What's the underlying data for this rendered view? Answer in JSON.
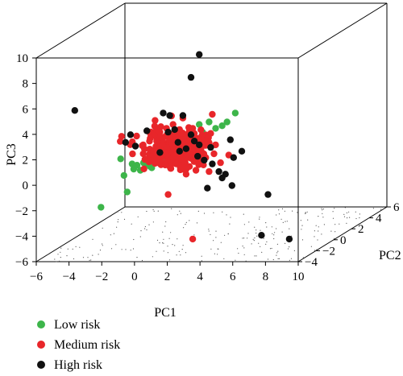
{
  "chart_data": {
    "type": "scatter",
    "dimensions": 3,
    "xlabel": "PC1",
    "ylabel": "PC2",
    "zlabel": "PC3",
    "xlim": [
      -6,
      10
    ],
    "ylim": [
      -4,
      6
    ],
    "zlim": [
      -6,
      10
    ],
    "xticks": [
      "−6",
      "−4",
      "−2",
      "0",
      "2",
      "4",
      "6",
      "8",
      "10"
    ],
    "yticks": [
      "−4",
      "−2",
      "0",
      "2",
      "4",
      "6"
    ],
    "zticks": [
      "−6",
      "−4",
      "−2",
      "0",
      "2",
      "4",
      "6",
      "8",
      "10"
    ],
    "box": true,
    "grid": false,
    "legend_position": "bottom-left",
    "series": [
      {
        "name": "Low risk",
        "color": "#3db54a",
        "points": [
          [
            -3.4,
            0,
            -2.8
          ],
          [
            -2.2,
            0,
            1.0
          ],
          [
            -2.0,
            0,
            -0.3
          ],
          [
            -1.8,
            0,
            -1.6
          ],
          [
            -1.5,
            0,
            0.6
          ],
          [
            -1.4,
            0,
            0.2
          ],
          [
            -1.2,
            0,
            0.5
          ],
          [
            -1.0,
            0,
            0.1
          ],
          [
            -0.8,
            0,
            0.7
          ],
          [
            -0.6,
            0,
            0.6
          ],
          [
            -0.4,
            0,
            0.4
          ],
          [
            -0.2,
            0,
            0.8
          ],
          [
            -0.3,
            0,
            0.3
          ],
          [
            0.0,
            0,
            0.9
          ],
          [
            -0.1,
            0,
            1.0
          ],
          [
            0.2,
            0,
            0.7
          ],
          [
            0.4,
            0,
            0.6
          ],
          [
            0.3,
            0,
            0.9
          ],
          [
            4.8,
            0,
            4.6
          ],
          [
            4.3,
            0,
            3.9
          ],
          [
            3.2,
            0,
            3.9
          ],
          [
            3.6,
            0,
            3.4
          ],
          [
            4.0,
            0,
            3.6
          ],
          [
            2.8,
            0,
            3.1
          ],
          [
            3.1,
            0,
            2.8
          ],
          [
            1.8,
            0,
            2.3
          ],
          [
            2.6,
            0,
            3.7
          ],
          [
            0.1,
            0,
            1.3
          ]
        ]
      },
      {
        "name": "Medium risk",
        "color": "#e8262a",
        "points": [
          [
            0.7,
            0,
            -1.8
          ],
          [
            2.2,
            0,
            -5.3
          ],
          [
            3.4,
            0,
            4.5
          ],
          [
            2.3,
            0,
            3.0
          ],
          [
            2.8,
            0,
            0.8
          ],
          [
            3.0,
            0,
            1.1
          ],
          [
            3.6,
            0,
            2.1
          ],
          [
            3.5,
            0,
            1.4
          ],
          [
            2.4,
            0,
            0.1
          ],
          [
            1.8,
            0,
            -0.2
          ],
          [
            1.5,
            0,
            1.0
          ],
          [
            2.6,
            0,
            1.7
          ],
          [
            1.1,
            0,
            2.4
          ],
          [
            0.0,
            0,
            2.4
          ],
          [
            -0.4,
            0,
            2.6
          ],
          [
            -0.2,
            0,
            1.6
          ],
          [
            0.2,
            0,
            3.1
          ],
          [
            0.6,
            0,
            3.4
          ],
          [
            1.0,
            0,
            3.7
          ],
          [
            1.4,
            0,
            3.3
          ],
          [
            1.8,
            0,
            2.9
          ],
          [
            1.2,
            0,
            0.6
          ],
          [
            0.8,
            0,
            0.4
          ],
          [
            2.0,
            0,
            0.4
          ],
          [
            3.9,
            0,
            0.7
          ],
          [
            4.4,
            0,
            1.3
          ],
          [
            3.2,
            0,
            0.0
          ],
          [
            2.2,
            0,
            3.4
          ],
          [
            1.6,
            0,
            4.2
          ],
          [
            2.5,
            0,
            2.5
          ],
          [
            0.5,
            0,
            1.5
          ],
          [
            1.0,
            0,
            1.1
          ],
          [
            0.1,
            0,
            1.8
          ],
          [
            2.9,
            0,
            2.3
          ],
          [
            3.3,
            0,
            3.0
          ]
        ],
        "cluster": {
          "center": [
            1.2,
            0,
            1.8
          ],
          "spread": [
            1.1,
            0,
            0.8
          ],
          "n": 260
        }
      },
      {
        "name": "High risk",
        "color": "#111111",
        "points": [
          [
            2.6,
            0,
            9.2
          ],
          [
            2.1,
            0,
            7.4
          ],
          [
            -5.0,
            0,
            4.8
          ],
          [
            0.4,
            0,
            4.6
          ],
          [
            0.8,
            0,
            4.4
          ],
          [
            1.6,
            0,
            4.4
          ],
          [
            0.7,
            0,
            3.1
          ],
          [
            1.1,
            0,
            3.3
          ],
          [
            1.3,
            0,
            2.3
          ],
          [
            2.1,
            0,
            2.9
          ],
          [
            2.3,
            0,
            2.4
          ],
          [
            1.8,
            0,
            1.8
          ],
          [
            1.4,
            0,
            1.6
          ],
          [
            2.6,
            0,
            2.1
          ],
          [
            3.3,
            0,
            1.9
          ],
          [
            4.5,
            0,
            2.5
          ],
          [
            4.7,
            0,
            1.1
          ],
          [
            5.2,
            0,
            1.6
          ],
          [
            3.4,
            0,
            0.6
          ],
          [
            4.2,
            0,
            -0.2
          ],
          [
            4.6,
            0,
            -1.1
          ],
          [
            4.0,
            0,
            -0.5
          ],
          [
            6.8,
            0,
            -1.8
          ],
          [
            -1.9,
            0,
            2.3
          ],
          [
            -1.6,
            0,
            2.9
          ],
          [
            -1.3,
            0,
            2.0
          ],
          [
            -0.6,
            0,
            3.2
          ],
          [
            0.2,
            0,
            1.5
          ],
          [
            2.9,
            0,
            0.9
          ],
          [
            3.8,
            0,
            0.0
          ],
          [
            3.1,
            0,
            -1.3
          ],
          [
            2.5,
            0,
            1.2
          ],
          [
            6.4,
            0,
            -5.0
          ],
          [
            8.1,
            0,
            -5.3
          ]
        ]
      }
    ]
  }
}
